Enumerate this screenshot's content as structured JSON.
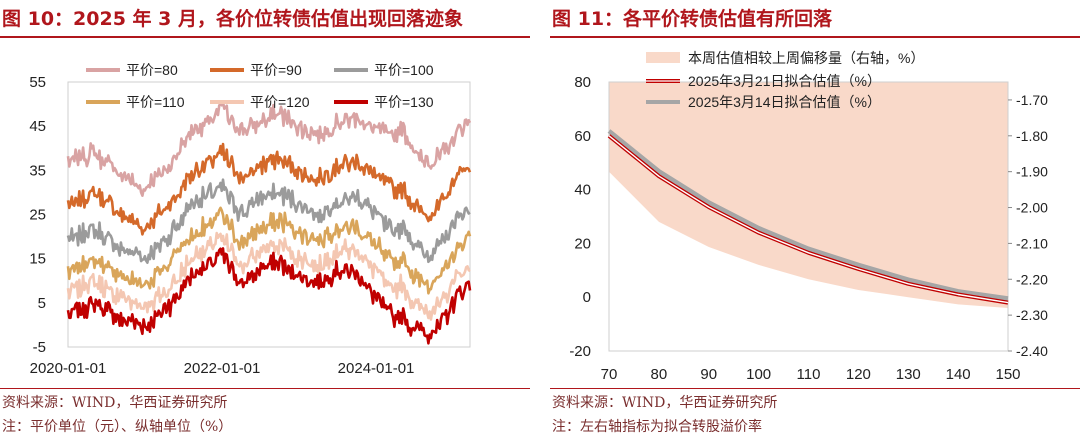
{
  "left": {
    "title": "图 10：2025 年 3 月，各价位转债估值出现回落迹象",
    "source": "资料来源：WIND，华西证券研究所",
    "note": "注：平价单位（元）、纵轴单位（%）",
    "chart_data": {
      "type": "line",
      "title": "",
      "xlabel": "",
      "ylabel": "",
      "ylim": [
        -5,
        55
      ],
      "yticks": [
        -5,
        5,
        15,
        25,
        35,
        45,
        55
      ],
      "xrange": [
        "2020-01-01",
        "2025-03-21"
      ],
      "xtick_labels": [
        "2020-01-01",
        "2022-01-01",
        "2024-01-01"
      ],
      "legend": [
        "平价=80",
        "平价=90",
        "平价=100",
        "平价=110",
        "平价=120",
        "平价=130"
      ],
      "colors": [
        "#d9a3a3",
        "#d4692a",
        "#9b9b9b",
        "#d9a55a",
        "#f4c7b2",
        "#c00000"
      ],
      "key_dates": [
        2020.0,
        2020.33,
        2020.7,
        2021.0,
        2021.3,
        2021.6,
        2021.85,
        2022.0,
        2022.25,
        2022.5,
        2022.75,
        2023.0,
        2023.25,
        2023.5,
        2023.75,
        2024.0,
        2024.2,
        2024.35,
        2024.5,
        2024.67,
        2024.85,
        2025.0,
        2025.1,
        2025.22
      ],
      "series": [
        {
          "name": "平价=80",
          "values": [
            37,
            39,
            34,
            31,
            36,
            44,
            46,
            49,
            44,
            46,
            48,
            45,
            43,
            46,
            47,
            44,
            43,
            44,
            39,
            37,
            38,
            42,
            45,
            47
          ]
        },
        {
          "name": "平价=90",
          "values": [
            27,
            30,
            25,
            22,
            27,
            34,
            37,
            39,
            33,
            36,
            38,
            35,
            33,
            36,
            37,
            34,
            31,
            31,
            27,
            25,
            27,
            32,
            35,
            36
          ]
        },
        {
          "name": "平价=100",
          "values": [
            19,
            22,
            17,
            15,
            20,
            27,
            30,
            31,
            25,
            29,
            30,
            27,
            25,
            28,
            29,
            25,
            21,
            22,
            18,
            16,
            18,
            23,
            25,
            26
          ]
        },
        {
          "name": "平价=110",
          "values": [
            12,
            15,
            11,
            9,
            14,
            20,
            23,
            25,
            18,
            22,
            24,
            21,
            19,
            22,
            22,
            18,
            14,
            15,
            11,
            9,
            11,
            16,
            18,
            20
          ]
        },
        {
          "name": "平价=120",
          "values": [
            7,
            10,
            6,
            4,
            8,
            15,
            18,
            20,
            13,
            17,
            18,
            15,
            13,
            17,
            17,
            12,
            8,
            9,
            5,
            3,
            5,
            10,
            12,
            13
          ]
        },
        {
          "name": "平价=130",
          "values": [
            2,
            5,
            1,
            0,
            4,
            11,
            14,
            16,
            9,
            13,
            14,
            11,
            9,
            12,
            12,
            6,
            2,
            2,
            -1,
            -2,
            0,
            5,
            8,
            9
          ]
        }
      ]
    }
  },
  "right": {
    "title": "图 11：各平价转债估值有所回落",
    "source": "资料来源：WIND，华西证券研究所",
    "note": "注：左右轴指标为拟合转股溢价率",
    "chart_data": {
      "type": "area",
      "xlim": [
        70,
        150
      ],
      "xticks": [
        70,
        80,
        90,
        100,
        110,
        120,
        130,
        140,
        150
      ],
      "ylim_left": [
        -20,
        80
      ],
      "yticks_left": [
        -20,
        0,
        20,
        40,
        60,
        80
      ],
      "ylim_right": [
        -2.4,
        -1.65
      ],
      "yticks_right": [
        "-1.70",
        "-1.80",
        "-1.90",
        "-2.00",
        "-2.10",
        "-2.20",
        "-2.30",
        "-2.40"
      ],
      "legend": [
        "本周估值相较上周偏移量（右轴，%）",
        "2025年3月21日拟合估值（%）",
        "2025年3月14日拟合估值（%）"
      ],
      "colors": {
        "area": "#f9d9c9",
        "line_0321": "#c00000",
        "line_0314": "#a6a6a6"
      },
      "x": [
        70,
        80,
        90,
        100,
        110,
        120,
        130,
        140,
        150
      ],
      "series": [
        {
          "name": "本周估值相较上周偏移量（右轴，%）",
          "axis": "right",
          "values": [
            -1.9,
            -2.04,
            -2.11,
            -2.16,
            -2.2,
            -2.23,
            -2.25,
            -2.27,
            -2.28
          ]
        },
        {
          "name": "2025年3月21日拟合估值（%）",
          "axis": "left",
          "values": [
            60.0,
            45.0,
            33.5,
            24.0,
            16.5,
            10.5,
            5.0,
            1.0,
            -2.0
          ]
        },
        {
          "name": "2025年3月14日拟合估值（%）",
          "axis": "left",
          "values": [
            61.8,
            46.8,
            35.2,
            25.7,
            18.0,
            12.0,
            6.5,
            2.2,
            -0.5
          ]
        }
      ]
    }
  }
}
